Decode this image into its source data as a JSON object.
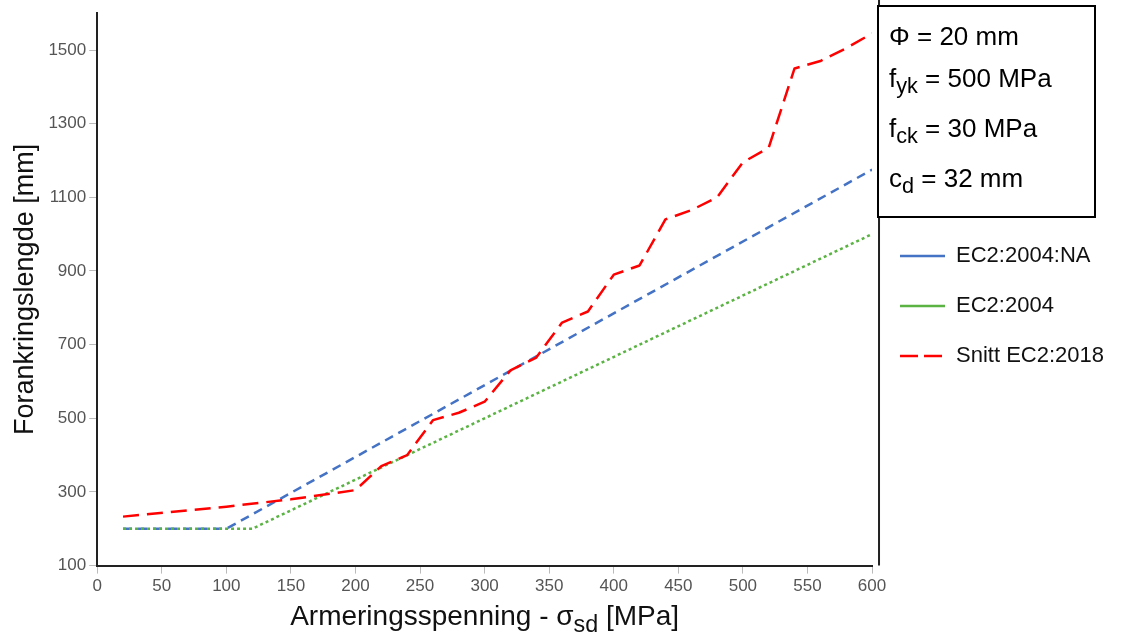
{
  "chart_data": {
    "type": "line",
    "xlabel": "Armeringsspenning - σ$_{sd}$ [MPa]",
    "ylabel": "Forankringslengde [mm]",
    "annotations": [
      "Φ = 20 mm",
      "f$_{yk}$ = 500 MPa",
      "f$_{ck}$ = 30 MPa",
      "c$_{d}$ = 32 mm"
    ],
    "xlim": [
      0,
      600
    ],
    "xticks": [
      0,
      50,
      100,
      150,
      200,
      250,
      300,
      350,
      400,
      450,
      500,
      550,
      600
    ],
    "ylim": [
      100,
      1600
    ],
    "yticks": [
      100,
      300,
      500,
      700,
      900,
      1100,
      1300,
      1500
    ],
    "grid": false,
    "legend": "right",
    "marker": "none",
    "series": [
      {
        "name": "EC2:2004:NA",
        "color": "#4472c4",
        "line_style": "dashed",
        "x": [
          20,
          100,
          600
        ],
        "values": [
          200,
          200,
          1175
        ]
      },
      {
        "name": "EC2:2004",
        "color": "#5bb344",
        "line_style": "dotted",
        "x": [
          20,
          120,
          600
        ],
        "values": [
          200,
          200,
          1000
        ]
      },
      {
        "name": "Snitt EC2:2018",
        "color": "#ff0000",
        "line_style": "longdash",
        "x": [
          20,
          100,
          150,
          200,
          220,
          240,
          260,
          280,
          300,
          320,
          340,
          360,
          380,
          400,
          420,
          440,
          460,
          480,
          500,
          520,
          540,
          560,
          580,
          600
        ],
        "values": [
          233,
          260,
          280,
          305,
          370,
          400,
          495,
          515,
          545,
          630,
          665,
          760,
          790,
          890,
          915,
          1040,
          1065,
          1100,
          1195,
          1235,
          1450,
          1470,
          1505,
          1545
        ]
      }
    ]
  }
}
